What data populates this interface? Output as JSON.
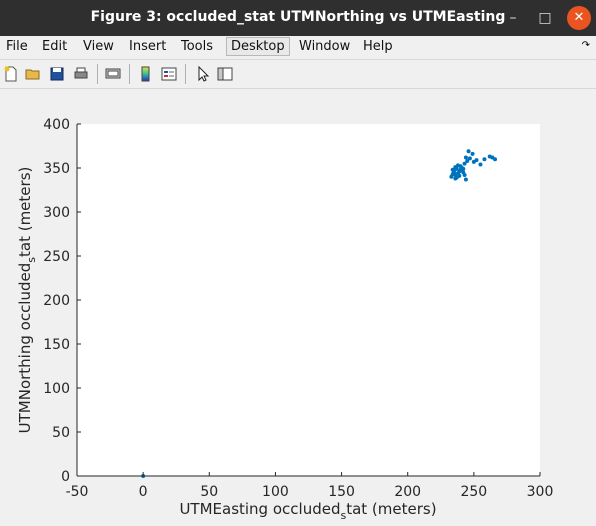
{
  "window": {
    "title": "Figure 3: occluded_stat UTMNorthing vs UTMEasting",
    "minimize_glyph": "–",
    "maximize_glyph": "□",
    "close_glyph": "✕"
  },
  "menu": {
    "items": [
      "File",
      "Edit",
      "View",
      "Insert",
      "Tools",
      "Desktop",
      "Window",
      "Help"
    ],
    "active": "Desktop",
    "overflow_icon": "curved-arrow-icon"
  },
  "toolbar": {
    "icons": [
      "new-figure-icon",
      "open-folder-icon",
      "save-icon",
      "print-icon",
      "print-preview-icon",
      "colorbar-icon",
      "legend-icon",
      "pointer-arrow-icon",
      "property-editor-icon"
    ]
  },
  "chart_data": {
    "type": "scatter",
    "xlabel_main": "UTMEasting occluded",
    "xlabel_sub": "s",
    "xlabel_tail": "tat (meters)",
    "ylabel_main": "UTMNorthing occluded",
    "ylabel_sub": "s",
    "ylabel_tail": "tat (meters)",
    "xlim": [
      -50,
      300
    ],
    "ylim": [
      0,
      400
    ],
    "xticks": [
      -50,
      0,
      50,
      100,
      150,
      200,
      250,
      300
    ],
    "yticks": [
      0,
      50,
      100,
      150,
      200,
      250,
      300,
      350,
      400
    ],
    "grid": false,
    "color": "#0072bd",
    "points": [
      [
        0,
        0
      ],
      [
        233,
        340
      ],
      [
        234,
        343
      ],
      [
        235,
        345
      ],
      [
        236,
        342
      ],
      [
        235,
        347
      ],
      [
        237,
        349
      ],
      [
        238,
        344
      ],
      [
        236,
        351
      ],
      [
        239,
        346
      ],
      [
        240,
        348
      ],
      [
        241,
        350
      ],
      [
        238,
        353
      ],
      [
        234,
        348
      ],
      [
        237,
        339
      ],
      [
        242,
        345
      ],
      [
        243,
        342
      ],
      [
        244,
        337
      ],
      [
        243,
        355
      ],
      [
        245,
        358
      ],
      [
        244,
        362
      ],
      [
        246,
        369
      ],
      [
        249,
        366
      ],
      [
        247,
        361
      ],
      [
        250,
        357
      ],
      [
        252,
        359
      ],
      [
        255,
        354
      ],
      [
        258,
        360
      ],
      [
        262,
        363
      ],
      [
        264,
        362
      ],
      [
        266,
        360
      ],
      [
        240,
        352
      ],
      [
        242,
        349
      ],
      [
        239,
        341
      ],
      [
        236,
        338
      ]
    ]
  }
}
